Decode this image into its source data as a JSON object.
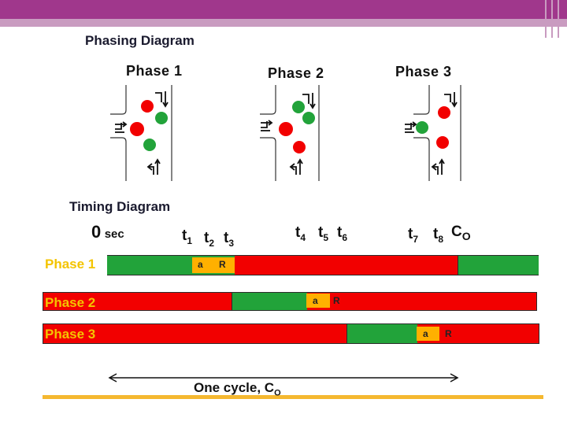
{
  "title": "Phasing Diagram",
  "phases_header": [
    "Phase 1",
    "Phase 2",
    "Phase 3"
  ],
  "timing_title": "Timing Diagram",
  "time_markers": {
    "zero_num": "0",
    "zero_unit": "sec",
    "t1": {
      "base": "t",
      "sub": "1"
    },
    "t2": {
      "base": "t",
      "sub": "2"
    },
    "t3": {
      "base": "t",
      "sub": "3"
    },
    "t4": {
      "base": "t",
      "sub": "4"
    },
    "t5": {
      "base": "t",
      "sub": "5"
    },
    "t6": {
      "base": "t",
      "sub": "6"
    },
    "t7": {
      "base": "t",
      "sub": "7"
    },
    "t8": {
      "base": "t",
      "sub": "8"
    },
    "co": {
      "base": "C",
      "sub": "O"
    }
  },
  "bars": [
    {
      "label": "Phase 1",
      "amber_label": "a",
      "red_label": "R"
    },
    {
      "label": "Phase 2",
      "amber_label": "a",
      "red_label": "R"
    },
    {
      "label": "Phase 3",
      "amber_label": "a",
      "red_label": "R"
    }
  ],
  "cycle": {
    "text": "One cycle, C",
    "sub": "O"
  },
  "colors": {
    "green": "#22a33a",
    "red": "#f20000",
    "amber": "#ffb000",
    "label_yellow": "#f4c400",
    "accent": "#a0378c",
    "bottom_line": "#f5b830"
  }
}
